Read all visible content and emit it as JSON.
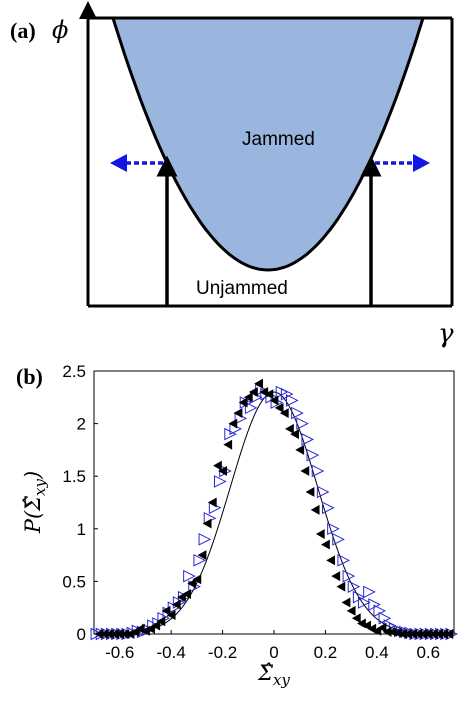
{
  "panel_a": {
    "letter": "(a)",
    "y_symbol": "ϕ",
    "x_symbol": "γ",
    "jammed_label": "Jammed",
    "unjammed_label": "Unjammed",
    "fill_color": "#9ab6de",
    "arrow_color": "#1414e6"
  },
  "panel_b": {
    "letter": "(b)"
  },
  "chart_data": [
    {
      "type": "diagram",
      "panel": "(a)",
      "regions": [
        "Jammed",
        "Unjammed"
      ],
      "axes": {
        "x": "γ",
        "y": "ϕ"
      }
    },
    {
      "type": "scatter",
      "panel": "(b)",
      "xlabel": "Σ̂xy",
      "ylabel": "P(Σ̂xy)",
      "xlim": [
        -0.7,
        0.7
      ],
      "ylim": [
        0,
        2.5
      ],
      "xticks": [
        "-0.6",
        "-0.4",
        "-0.2",
        "0",
        "0.2",
        "0.4",
        "0.6"
      ],
      "yticks": [
        "0",
        "0.5",
        "1",
        "1.5",
        "2",
        "2.5"
      ],
      "xtick_values": [
        -0.6,
        -0.4,
        -0.2,
        0,
        0.2,
        0.4,
        0.6
      ],
      "ytick_values": [
        0,
        0.5,
        1,
        1.5,
        2,
        2.5
      ],
      "fit_curve": {
        "shape": "gaussian",
        "mean": 0.0,
        "sd": 0.17,
        "peak": 2.3
      },
      "series": [
        {
          "marker": "left-triangle-filled",
          "color": "#000000",
          "x": [
            -0.68,
            -0.66,
            -0.64,
            -0.62,
            -0.6,
            -0.58,
            -0.56,
            -0.54,
            -0.52,
            -0.5,
            -0.48,
            -0.46,
            -0.44,
            -0.42,
            -0.4,
            -0.38,
            -0.36,
            -0.34,
            -0.32,
            -0.3,
            -0.28,
            -0.26,
            -0.24,
            -0.22,
            -0.2,
            -0.18,
            -0.16,
            -0.14,
            -0.12,
            -0.1,
            -0.08,
            -0.06,
            -0.04,
            -0.02,
            0.0,
            0.02,
            0.04,
            0.06,
            0.08,
            0.1,
            0.12,
            0.14,
            0.16,
            0.18,
            0.2,
            0.22,
            0.24,
            0.26,
            0.28,
            0.3,
            0.32,
            0.34,
            0.36,
            0.38,
            0.4,
            0.42,
            0.44,
            0.46,
            0.48,
            0.5,
            0.52,
            0.54,
            0.56,
            0.58,
            0.6,
            0.62,
            0.64,
            0.66,
            0.68
          ],
          "y": [
            0,
            0,
            0,
            0,
            0,
            0,
            0,
            0.02,
            0.05,
            0.03,
            0.05,
            0.08,
            0.12,
            0.22,
            0.18,
            0.28,
            0.35,
            0.38,
            0.48,
            0.52,
            0.75,
            1.05,
            1.25,
            1.6,
            1.55,
            1.8,
            2.0,
            2.1,
            2.2,
            2.25,
            2.3,
            2.38,
            2.3,
            2.28,
            2.22,
            2.15,
            2.1,
            1.95,
            1.9,
            1.75,
            1.55,
            1.35,
            1.18,
            0.95,
            0.85,
            0.7,
            0.55,
            0.45,
            0.3,
            0.22,
            0.15,
            0.1,
            0.08,
            0.05,
            0.03,
            0.06,
            0.02,
            0.02,
            0.01,
            0,
            0,
            0,
            0,
            0,
            0,
            0,
            0,
            0,
            0
          ]
        },
        {
          "marker": "right-triangle-open",
          "color": "#2828d8",
          "x": [
            -0.69,
            -0.67,
            -0.65,
            -0.63,
            -0.61,
            -0.59,
            -0.57,
            -0.55,
            -0.53,
            -0.51,
            -0.49,
            -0.47,
            -0.45,
            -0.43,
            -0.41,
            -0.39,
            -0.37,
            -0.35,
            -0.33,
            -0.31,
            -0.29,
            -0.27,
            -0.25,
            -0.23,
            -0.21,
            -0.19,
            -0.17,
            -0.15,
            -0.13,
            -0.11,
            -0.09,
            -0.07,
            -0.05,
            -0.03,
            -0.01,
            0.01,
            0.03,
            0.05,
            0.07,
            0.09,
            0.11,
            0.13,
            0.15,
            0.17,
            0.19,
            0.21,
            0.23,
            0.25,
            0.27,
            0.29,
            0.31,
            0.33,
            0.35,
            0.37,
            0.39,
            0.41,
            0.43,
            0.45,
            0.47,
            0.49,
            0.51,
            0.53,
            0.55,
            0.57,
            0.59,
            0.61,
            0.63,
            0.65,
            0.67,
            0.69
          ],
          "y": [
            0,
            0,
            0,
            0,
            0,
            0,
            0,
            0.01,
            0.03,
            0.02,
            0.04,
            0.08,
            0.1,
            0.15,
            0.2,
            0.25,
            0.3,
            0.35,
            0.55,
            0.45,
            0.7,
            0.9,
            1.1,
            1.2,
            1.45,
            1.55,
            1.9,
            1.95,
            2.05,
            2.2,
            2.15,
            2.25,
            2.32,
            2.28,
            2.25,
            2.2,
            2.3,
            2.28,
            2.22,
            2.1,
            2.0,
            1.85,
            1.7,
            1.55,
            1.35,
            1.2,
            1.0,
            0.9,
            0.7,
            0.55,
            0.45,
            0.35,
            0.3,
            0.4,
            0.28,
            0.22,
            0.15,
            0.08,
            0.05,
            0.03,
            0.02,
            0.01,
            0,
            0,
            0,
            0,
            0,
            0,
            0,
            0
          ]
        }
      ]
    }
  ]
}
